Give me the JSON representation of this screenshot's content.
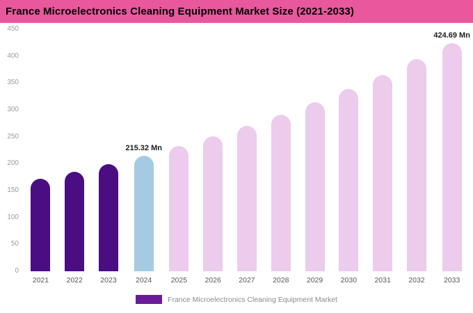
{
  "title": "France Microelectronics Cleaning Equipment Market Size (2021-2033)",
  "colors": {
    "header_bg": "#E9579D",
    "historical_bar": "#4B0D82",
    "highlight_bar": "#A4CBE3",
    "forecast_bar": "#ECCBED"
  },
  "legend": {
    "label": "France Microelectronics Cleaning Equipment Market",
    "swatch_color": "#6A1B9A"
  },
  "chart_data": {
    "type": "bar",
    "title": "France Microelectronics Cleaning Equipment Market Size (2021-2033)",
    "categories": [
      "2021",
      "2022",
      "2023",
      "2024",
      "2025",
      "2026",
      "2027",
      "2028",
      "2029",
      "2030",
      "2031",
      "2032",
      "2033"
    ],
    "values": [
      171.8,
      185.2,
      199.7,
      215.32,
      232.2,
      250.4,
      270.0,
      291.2,
      314.0,
      338.6,
      365.2,
      393.8,
      424.69
    ],
    "unit": "Mn",
    "xlabel": "",
    "ylabel": "",
    "ylim": [
      0,
      450
    ],
    "yticks": [
      0,
      50,
      100,
      150,
      200,
      250,
      300,
      350,
      400,
      450
    ],
    "grid": false,
    "legend_position": "bottom",
    "bar_colors": [
      "#4B0D82",
      "#4B0D82",
      "#4B0D82",
      "#A4CBE3",
      "#ECCBED",
      "#ECCBED",
      "#ECCBED",
      "#ECCBED",
      "#ECCBED",
      "#ECCBED",
      "#ECCBED",
      "#ECCBED",
      "#ECCBED"
    ],
    "annotations": [
      {
        "index": 3,
        "label": "215.32 Mn"
      },
      {
        "index": 12,
        "label": "424.69 Mn"
      }
    ]
  }
}
